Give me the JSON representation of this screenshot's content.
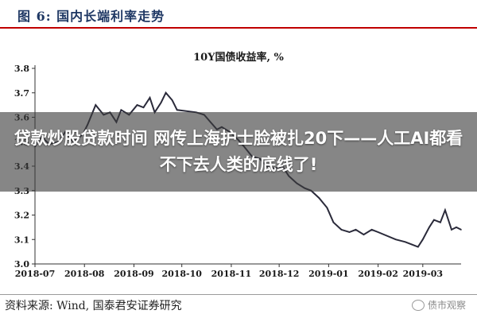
{
  "figure": {
    "title": "图 6:  国内长端利率走势",
    "source": "资料来源:  Wind,  国泰君安证券研究",
    "watermark": "债市观察",
    "accent_color": "#c00000"
  },
  "banner": {
    "text": "贷款炒股贷款时间 网传上海护士脸被扎20下——人工AI都看不下去人类的底线了!"
  },
  "chart_data": {
    "type": "line",
    "title": "10Y国债收益率, %",
    "xlabel": "",
    "ylabel": "",
    "ylim": [
      3.0,
      3.8
    ],
    "yticks": [
      "3.0",
      "3.1",
      "3.2",
      "3.3",
      "3.4",
      "3.5",
      "3.6",
      "3.7",
      "3.8"
    ],
    "xticks": [
      "2018-07",
      "2018-08",
      "2018-09",
      "2018-10",
      "2018-11",
      "2018-12",
      "2019-01",
      "2019-02",
      "2019-03"
    ],
    "xlim": [
      "2018-07-01",
      "2019-03-25"
    ],
    "grid": false,
    "line_color": "#2a2a3a",
    "series": [
      {
        "name": "",
        "x": [
          "2018-07-01",
          "2018-07-05",
          "2018-07-10",
          "2018-07-16",
          "2018-07-20",
          "2018-07-25",
          "2018-07-31",
          "2018-08-03",
          "2018-08-08",
          "2018-08-13",
          "2018-08-17",
          "2018-08-21",
          "2018-08-24",
          "2018-08-29",
          "2018-09-03",
          "2018-09-07",
          "2018-09-11",
          "2018-09-14",
          "2018-09-18",
          "2018-09-21",
          "2018-09-25",
          "2018-09-28",
          "2018-10-10",
          "2018-10-15",
          "2018-10-19",
          "2018-10-23",
          "2018-10-26",
          "2018-10-31",
          "2018-11-05",
          "2018-11-09",
          "2018-11-14",
          "2018-11-19",
          "2018-11-23",
          "2018-11-28",
          "2018-12-03",
          "2018-12-07",
          "2018-12-12",
          "2018-12-17",
          "2018-12-21",
          "2018-12-26",
          "2018-12-31",
          "2019-01-04",
          "2019-01-09",
          "2019-01-14",
          "2019-01-18",
          "2019-01-23",
          "2019-01-28",
          "2019-02-01",
          "2019-02-12",
          "2019-02-18",
          "2019-02-22",
          "2019-02-26",
          "2019-03-01",
          "2019-03-05",
          "2019-03-08",
          "2019-03-12",
          "2019-03-15",
          "2019-03-19",
          "2019-03-22",
          "2019-03-25"
        ],
        "values": [
          3.48,
          3.52,
          3.49,
          3.5,
          3.54,
          3.5,
          3.53,
          3.57,
          3.65,
          3.61,
          3.62,
          3.58,
          3.63,
          3.61,
          3.65,
          3.64,
          3.68,
          3.62,
          3.66,
          3.7,
          3.67,
          3.63,
          3.62,
          3.61,
          3.58,
          3.55,
          3.56,
          3.54,
          3.51,
          3.48,
          3.44,
          3.43,
          3.4,
          3.39,
          3.4,
          3.36,
          3.33,
          3.31,
          3.3,
          3.27,
          3.23,
          3.17,
          3.14,
          3.13,
          3.14,
          3.12,
          3.14,
          3.13,
          3.1,
          3.09,
          3.08,
          3.07,
          3.1,
          3.15,
          3.18,
          3.17,
          3.22,
          3.14,
          3.15,
          3.14
        ]
      }
    ]
  }
}
